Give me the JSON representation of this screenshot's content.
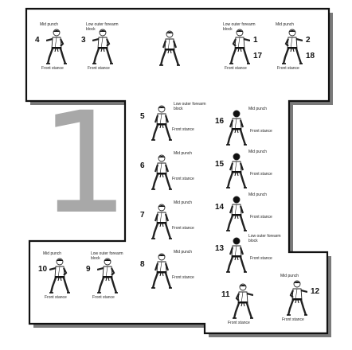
{
  "kata_number": "1",
  "steps": [
    {
      "id": "start",
      "number": "",
      "number_alt": "",
      "technique": "",
      "stance": "",
      "side": "front",
      "dark_hair": false
    },
    {
      "id": "s4",
      "number": "4",
      "number_alt": "",
      "technique": "Mid punch",
      "stance": "Front stance",
      "side": "left",
      "dark_hair": false
    },
    {
      "id": "s3",
      "number": "3",
      "number_alt": "",
      "technique": "Low outer forearm block",
      "stance": "Front stance",
      "side": "left",
      "dark_hair": false
    },
    {
      "id": "s1",
      "number": "1",
      "number_alt": "17",
      "technique": "Low outer forearm block",
      "stance": "Front stance",
      "side": "right",
      "dark_hair": false
    },
    {
      "id": "s2",
      "number": "2",
      "number_alt": "18",
      "technique": "Mid punch",
      "stance": "Front stance",
      "side": "right",
      "dark_hair": false
    },
    {
      "id": "s5",
      "number": "5",
      "number_alt": "",
      "technique": "Low outer forearm block",
      "stance": "Front stance",
      "side": "front",
      "dark_hair": false
    },
    {
      "id": "s6",
      "number": "6",
      "number_alt": "",
      "technique": "Mid punch",
      "stance": "Front stance",
      "side": "front",
      "dark_hair": false
    },
    {
      "id": "s7",
      "number": "7",
      "number_alt": "",
      "technique": "Mid punch",
      "stance": "Front stance",
      "side": "front",
      "dark_hair": false
    },
    {
      "id": "s8",
      "number": "8",
      "number_alt": "",
      "technique": "Mid punch",
      "stance": "Front stance",
      "side": "front",
      "dark_hair": false
    },
    {
      "id": "s16",
      "number": "16",
      "number_alt": "",
      "technique": "Mid punch",
      "stance": "Front stance",
      "side": "back",
      "dark_hair": true
    },
    {
      "id": "s15",
      "number": "15",
      "number_alt": "",
      "technique": "Mid punch",
      "stance": "Front stance",
      "side": "back",
      "dark_hair": true
    },
    {
      "id": "s14",
      "number": "14",
      "number_alt": "",
      "technique": "Mid punch",
      "stance": "Front stance",
      "side": "back",
      "dark_hair": true
    },
    {
      "id": "s13",
      "number": "13",
      "number_alt": "",
      "technique": "Low outer forearm block",
      "stance": "Front stance",
      "side": "back",
      "dark_hair": true
    },
    {
      "id": "s10",
      "number": "10",
      "number_alt": "",
      "technique": "Mid punch",
      "stance": "Front stance",
      "side": "left",
      "dark_hair": false
    },
    {
      "id": "s9",
      "number": "9",
      "number_alt": "",
      "technique": "Low outer forearm block",
      "stance": "Front stance",
      "side": "left",
      "dark_hair": false
    },
    {
      "id": "s11",
      "number": "11",
      "number_alt": "",
      "technique": "",
      "stance": "Front stance",
      "side": "right",
      "dark_hair": false
    },
    {
      "id": "s12",
      "number": "12",
      "number_alt": "",
      "technique": "Mid punch",
      "stance": "Front stance",
      "side": "right",
      "dark_hair": false
    }
  ]
}
